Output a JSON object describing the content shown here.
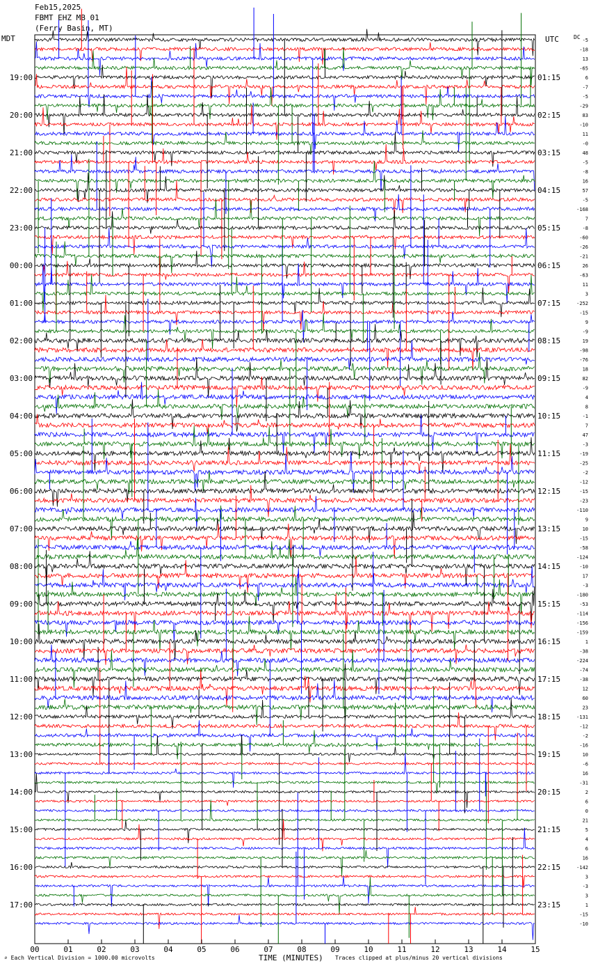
{
  "header": {
    "date": "Feb15,2025",
    "station": "FBMT EHZ MB 01",
    "location": "(Ferry Basin, MT)"
  },
  "left_timezone": "MDT",
  "right_timezone": "UTC",
  "dc_label": "DC",
  "footer": {
    "scale_note": "Each Vertical Division = 1000.00 microvolts",
    "xlabel": "TIME (MINUTES)",
    "clip_note": "Traces clipped at plus/minus 20 vertical divisions"
  },
  "colors": {
    "trace_cycle": [
      "#000000",
      "#ff0000",
      "#0000ff",
      "#007000"
    ]
  },
  "chart_data": {
    "type": "line",
    "xlabel": "TIME (MINUTES)",
    "xlim": [
      0,
      15
    ],
    "x_ticks": [
      "00",
      "01",
      "02",
      "03",
      "04",
      "05",
      "06",
      "07",
      "08",
      "09",
      "10",
      "11",
      "12",
      "13",
      "14",
      "15"
    ],
    "left_hour_labels": [
      "19:00",
      "20:00",
      "21:00",
      "22:00",
      "23:00",
      "00:00",
      "01:00",
      "02:00",
      "03:00",
      "04:00",
      "05:00",
      "06:00",
      "07:00",
      "08:00",
      "09:00",
      "10:00",
      "11:00",
      "12:00",
      "13:00",
      "14:00",
      "15:00",
      "16:00",
      "17:00"
    ],
    "right_hour_labels": [
      "01:15",
      "02:15",
      "03:15",
      "04:15",
      "05:15",
      "06:15",
      "07:15",
      "08:15",
      "09:15",
      "10:15",
      "11:15",
      "12:15",
      "13:15",
      "14:15",
      "15:15",
      "16:15",
      "17:15",
      "18:15",
      "19:15",
      "20:15",
      "21:15",
      "22:15",
      "23:15"
    ],
    "dc_offsets": [
      "-5",
      "-18",
      "13",
      "-65",
      "6",
      "-7",
      "-5",
      "-29",
      "83",
      "-10",
      "11",
      "-0",
      "48",
      "-5",
      "-8",
      "16",
      "57",
      "-5",
      "-168",
      "7",
      "-8",
      "-60",
      "-26",
      "-21",
      "26",
      "-63",
      "11",
      "3",
      "-252",
      "-15",
      "9",
      "-9",
      "19",
      "-98",
      "-76",
      "18",
      "82",
      "-9",
      "4",
      "8",
      "-1",
      "7",
      "47",
      "-3",
      "-19",
      "-25",
      "-2",
      "-12",
      "-15",
      "-23",
      "-110",
      "9",
      "10",
      "-15",
      "-58",
      "-124",
      "-10",
      "17",
      "-3",
      "-180",
      "-53",
      "-114",
      "-156",
      "-159",
      "1",
      "-38",
      "-224",
      "-74",
      "-38",
      "12",
      "60",
      "23",
      "-131",
      "-12",
      "-2",
      "-16",
      "10",
      "-6",
      "16",
      "-31",
      "2",
      "6",
      "0",
      "21",
      "5",
      "4",
      "6",
      "16",
      "-142",
      "3",
      "-3",
      "3",
      "1",
      "-15",
      "-10"
    ],
    "traces": 95,
    "minutes_per_trace": 15,
    "units": "microvolts",
    "vertical_division_microvolts": 1000,
    "clip_divisions": 20,
    "grid": false
  }
}
